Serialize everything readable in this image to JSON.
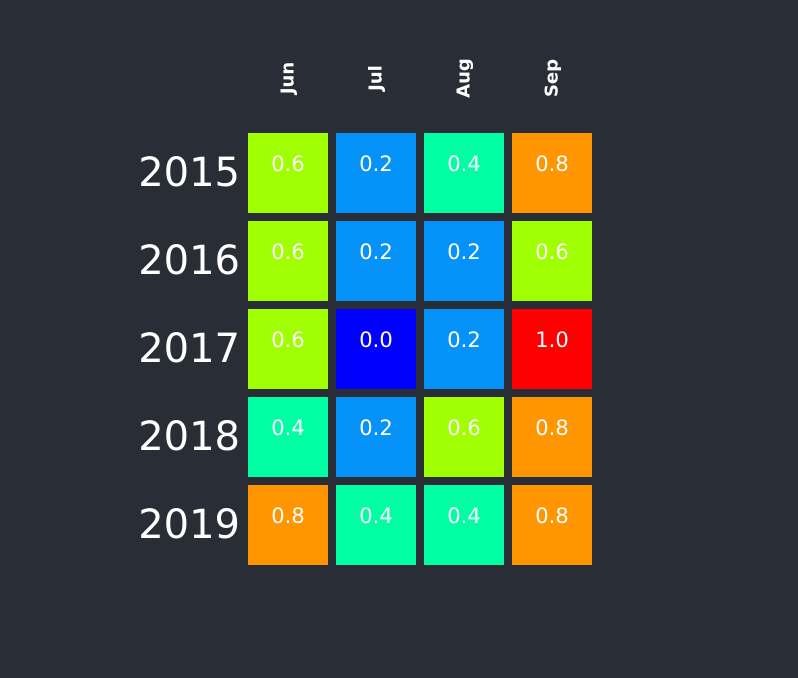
{
  "chart_data": {
    "type": "heatmap",
    "title": "",
    "columns": [
      "Jun",
      "Jul",
      "Aug",
      "Sep"
    ],
    "rows": [
      "2015",
      "2016",
      "2017",
      "2018",
      "2019"
    ],
    "values": [
      [
        0.6,
        0.2,
        0.4,
        0.8
      ],
      [
        0.6,
        0.2,
        0.2,
        0.6
      ],
      [
        0.6,
        0.0,
        0.2,
        1.0
      ],
      [
        0.4,
        0.2,
        0.6,
        0.8
      ],
      [
        0.8,
        0.4,
        0.4,
        0.8
      ]
    ],
    "value_labels": [
      [
        "0.6",
        "0.2",
        "0.4",
        "0.8"
      ],
      [
        "0.6",
        "0.2",
        "0.2",
        "0.6"
      ],
      [
        "0.6",
        "0.0",
        "0.2",
        "1.0"
      ],
      [
        "0.4",
        "0.2",
        "0.6",
        "0.8"
      ],
      [
        "0.8",
        "0.4",
        "0.4",
        "0.8"
      ]
    ],
    "colorscale": {
      "0.0": "#0000ff",
      "0.2": "#0693f9",
      "0.4": "#00ffa3",
      "0.6": "#a0ff00",
      "0.8": "#ff9500",
      "1.0": "#ff0000"
    },
    "background": "#292d36",
    "text_color": "#ffffff"
  }
}
